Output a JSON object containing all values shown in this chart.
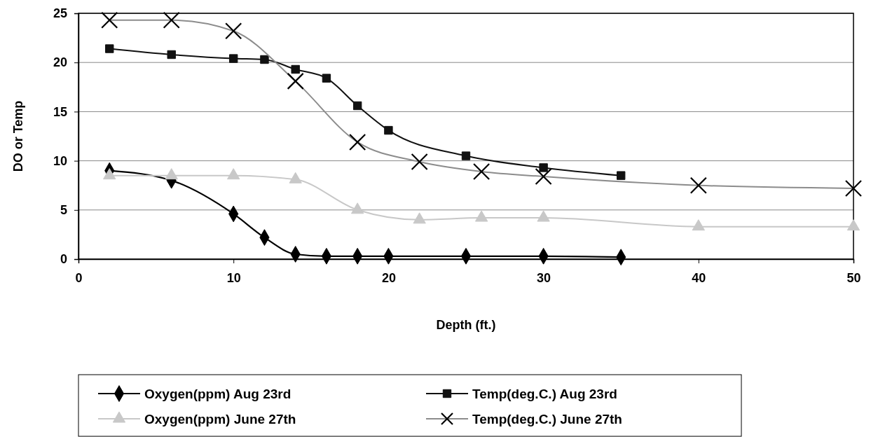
{
  "chart_data": {
    "type": "line",
    "xlabel": "Depth (ft.)",
    "ylabel": "DO or Temp",
    "xlim": [
      0,
      50
    ],
    "xticks": [
      0,
      10,
      20,
      30,
      40,
      50
    ],
    "ylim": [
      0,
      25
    ],
    "yticks": [
      0,
      5,
      10,
      15,
      20,
      25
    ],
    "grid": "y",
    "legend": "bottom",
    "series": [
      {
        "name": "Oxygen(ppm) Aug 23rd",
        "color": "#000000",
        "marker": "diamond",
        "x": [
          2,
          6,
          10,
          12,
          14,
          16,
          18,
          20,
          25,
          30,
          35
        ],
        "values": [
          9.0,
          8.0,
          4.6,
          2.2,
          0.5,
          0.3,
          0.3,
          0.3,
          0.3,
          0.3,
          0.2
        ]
      },
      {
        "name": "Temp(deg.C.) Aug 23rd",
        "color": "#111111",
        "marker": "square",
        "x": [
          2,
          6,
          10,
          12,
          14,
          16,
          18,
          20,
          25,
          30,
          35
        ],
        "values": [
          21.4,
          20.8,
          20.4,
          20.3,
          19.3,
          18.4,
          15.6,
          13.1,
          10.5,
          9.3,
          8.5
        ]
      },
      {
        "name": "Oxygen(ppm) June 27th",
        "color": "#c8c8c8",
        "marker": "triangle",
        "x": [
          2,
          6,
          10,
          14,
          18,
          22,
          26,
          30,
          40,
          50
        ],
        "values": [
          8.5,
          8.5,
          8.5,
          8.1,
          5.0,
          4.0,
          4.2,
          4.2,
          3.3,
          3.3
        ]
      },
      {
        "name": "Temp(deg.C.) June 27th",
        "color": "#8c8c8c",
        "marker": "cross",
        "x": [
          2,
          6,
          10,
          14,
          18,
          22,
          26,
          30,
          40,
          50
        ],
        "values": [
          24.3,
          24.3,
          23.2,
          18.1,
          11.9,
          9.9,
          8.9,
          8.4,
          7.5,
          7.2
        ]
      }
    ]
  }
}
